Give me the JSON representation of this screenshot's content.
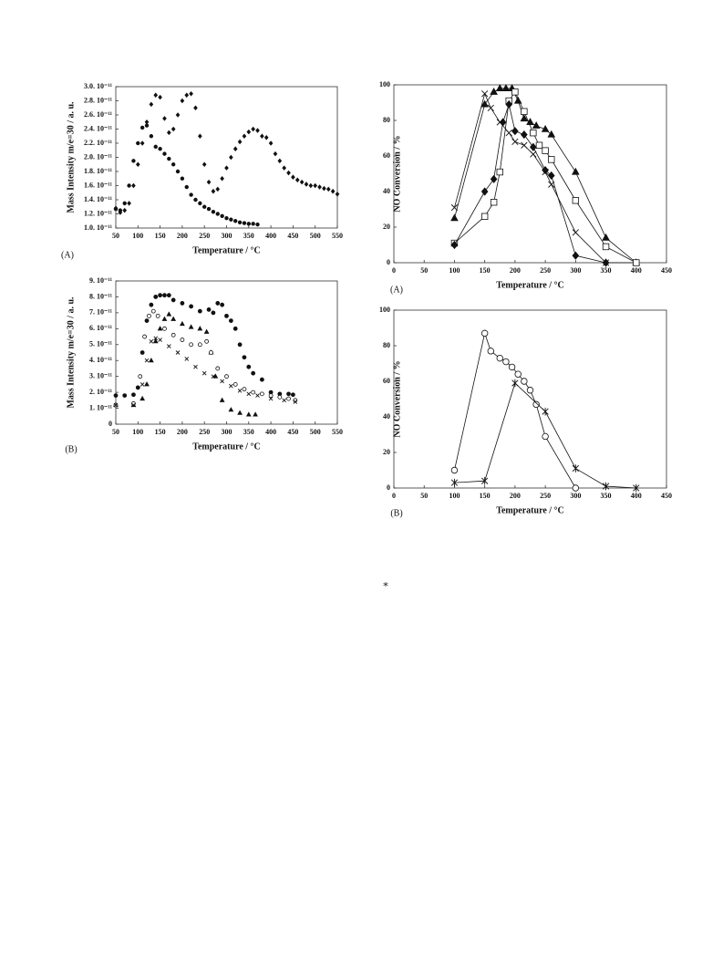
{
  "footnote_mark": "⁎",
  "chart_data": [
    {
      "type": "scatter",
      "panel_label": "(A)",
      "x_label": "Temperature / °C",
      "y_label": "Mass Intensity m/e=30 / a. u.",
      "xlim": [
        50,
        550
      ],
      "xticks": [
        50,
        100,
        150,
        200,
        250,
        300,
        350,
        400,
        450,
        500,
        550
      ],
      "ylim": [
        1e-11,
        3e-11
      ],
      "yticks": [
        {
          "value": 1e-11,
          "label": "1.0. 10⁻¹¹"
        },
        {
          "value": 1.2e-11,
          "label": "1.2. 10⁻¹¹"
        },
        {
          "value": 1.4e-11,
          "label": "1.4. 10⁻¹¹"
        },
        {
          "value": 1.6e-11,
          "label": "1.6. 10⁻¹¹"
        },
        {
          "value": 1.8e-11,
          "label": "1.8. 10⁻¹¹"
        },
        {
          "value": 2e-11,
          "label": "2.0. 10⁻¹¹"
        },
        {
          "value": 2.2e-11,
          "label": "2.2. 10⁻¹¹"
        },
        {
          "value": 2.4e-11,
          "label": "2.4. 10⁻¹¹"
        },
        {
          "value": 2.6e-11,
          "label": "2.6. 10⁻¹¹"
        },
        {
          "value": 2.8e-11,
          "label": "2.8. 10⁻¹¹"
        },
        {
          "value": 3e-11,
          "label": "3.0. 10⁻¹¹"
        }
      ],
      "series": [
        {
          "marker": "circle-filled",
          "color": "#111",
          "x": [
            50,
            60,
            70,
            80,
            90,
            100,
            110,
            120,
            130,
            140,
            150,
            160,
            170,
            180,
            190,
            200,
            210,
            220,
            230,
            240,
            250,
            260,
            270,
            280,
            290,
            300,
            310,
            320,
            330,
            340,
            350,
            360,
            370
          ],
          "values": [
            1.27e-11,
            1.25e-11,
            1.35e-11,
            1.6e-11,
            1.95e-11,
            2.2e-11,
            2.42e-11,
            2.45e-11,
            2.3e-11,
            2.15e-11,
            2.12e-11,
            2.05e-11,
            1.98e-11,
            1.9e-11,
            1.8e-11,
            1.7e-11,
            1.58e-11,
            1.47e-11,
            1.4e-11,
            1.35e-11,
            1.3e-11,
            1.27e-11,
            1.23e-11,
            1.2e-11,
            1.17e-11,
            1.14e-11,
            1.12e-11,
            1.1e-11,
            1.08e-11,
            1.07e-11,
            1.06e-11,
            1.06e-11,
            1.05e-11
          ]
        },
        {
          "marker": "diamond-filled",
          "color": "#111",
          "x": [
            50,
            60,
            70,
            80,
            90,
            100,
            110,
            120,
            130,
            140,
            150,
            160,
            170,
            180,
            190,
            200,
            210,
            220,
            230,
            240,
            250,
            260,
            270,
            280,
            290,
            300,
            310,
            320,
            330,
            340,
            350,
            360,
            370,
            380,
            390,
            400,
            410,
            420,
            430,
            440,
            450,
            460,
            470,
            480,
            490,
            500,
            510,
            520,
            530,
            540,
            550
          ],
          "values": [
            1.28e-11,
            1.22e-11,
            1.25e-11,
            1.35e-11,
            1.6e-11,
            1.9e-11,
            2.2e-11,
            2.5e-11,
            2.75e-11,
            2.88e-11,
            2.85e-11,
            2.55e-11,
            2.35e-11,
            2.4e-11,
            2.6e-11,
            2.8e-11,
            2.88e-11,
            2.9e-11,
            2.7e-11,
            2.3e-11,
            1.9e-11,
            1.65e-11,
            1.52e-11,
            1.55e-11,
            1.7e-11,
            1.85e-11,
            2e-11,
            2.12e-11,
            2.22e-11,
            2.3e-11,
            2.36e-11,
            2.4e-11,
            2.38e-11,
            2.3e-11,
            2.28e-11,
            2.2e-11,
            2.05e-11,
            1.95e-11,
            1.85e-11,
            1.78e-11,
            1.72e-11,
            1.68e-11,
            1.65e-11,
            1.62e-11,
            1.6e-11,
            1.6e-11,
            1.58e-11,
            1.56e-11,
            1.55e-11,
            1.52e-11,
            1.48e-11
          ]
        }
      ]
    },
    {
      "type": "scatter",
      "panel_label": "(B)",
      "x_label": "Temperature / °C",
      "y_label": "Mass Intensity m/e=30 / a. u.",
      "xlim": [
        50,
        550
      ],
      "xticks": [
        50,
        100,
        150,
        200,
        250,
        300,
        350,
        400,
        450,
        500,
        550
      ],
      "ylim": [
        0,
        9e-11
      ],
      "yticks": [
        0,
        {
          "value": 1e-11,
          "label": "1. 10⁻¹¹"
        },
        {
          "value": 2e-11,
          "label": "2. 10⁻¹¹"
        },
        {
          "value": 3e-11,
          "label": "3. 10⁻¹¹"
        },
        {
          "value": 4e-11,
          "label": "4. 10⁻¹¹"
        },
        {
          "value": 5e-11,
          "label": "5. 10⁻¹¹"
        },
        {
          "value": 6e-11,
          "label": "6. 10⁻¹¹"
        },
        {
          "value": 7e-11,
          "label": "7. 10⁻¹¹"
        },
        {
          "value": 8e-11,
          "label": "8. 10⁻¹¹"
        },
        {
          "value": 9e-11,
          "label": "9. 10⁻¹¹"
        }
      ],
      "series": [
        {
          "marker": "circle-filled",
          "color": "#111",
          "x": [
            50,
            70,
            90,
            100,
            110,
            120,
            130,
            140,
            150,
            160,
            170,
            180,
            200,
            220,
            240,
            260,
            270,
            280,
            290,
            300,
            310,
            320,
            330,
            340,
            350,
            360,
            380,
            400,
            420,
            440,
            450
          ],
          "values": [
            1.8e-11,
            1.8e-11,
            1.85e-11,
            2.3e-11,
            4.5e-11,
            6.5e-11,
            7.5e-11,
            8e-11,
            8.1e-11,
            8.1e-11,
            8.1e-11,
            7.8e-11,
            7.6e-11,
            7.4e-11,
            7.1e-11,
            7.2e-11,
            7e-11,
            7.6e-11,
            7.5e-11,
            6.8e-11,
            6.5e-11,
            6e-11,
            5e-11,
            4.2e-11,
            3.6e-11,
            3.2e-11,
            2.8e-11,
            2e-11,
            1.9e-11,
            1.9e-11,
            1.85e-11
          ]
        },
        {
          "marker": "triangle-filled",
          "color": "#111",
          "x": [
            50,
            90,
            110,
            120,
            130,
            140,
            150,
            160,
            170,
            180,
            200,
            220,
            240,
            255,
            265,
            275,
            290,
            310,
            330,
            350,
            365
          ],
          "values": [
            1.2e-11,
            1.2e-11,
            1.6e-11,
            2.5e-11,
            4e-11,
            5.2e-11,
            6e-11,
            6.6e-11,
            6.9e-11,
            6.6e-11,
            6.3e-11,
            6.1e-11,
            6e-11,
            5.8e-11,
            4.5e-11,
            3e-11,
            1.5e-11,
            9e-12,
            7e-12,
            6e-12,
            6e-12
          ]
        },
        {
          "marker": "circle-open",
          "color": "#111",
          "x": [
            50,
            90,
            105,
            115,
            125,
            135,
            145,
            160,
            180,
            200,
            220,
            240,
            255,
            265,
            280,
            300,
            320,
            340,
            360,
            380,
            400,
            420,
            440,
            455
          ],
          "values": [
            1.2e-11,
            1.3e-11,
            3e-11,
            5.5e-11,
            6.8e-11,
            7.1e-11,
            6.8e-11,
            6e-11,
            5.6e-11,
            5.3e-11,
            5e-11,
            5e-11,
            5.2e-11,
            4.5e-11,
            3.5e-11,
            3e-11,
            2.5e-11,
            2.2e-11,
            2e-11,
            1.9e-11,
            1.8e-11,
            1.7e-11,
            1.6e-11,
            1.5e-11
          ]
        },
        {
          "marker": "x",
          "color": "#111",
          "x": [
            50,
            90,
            110,
            120,
            130,
            140,
            150,
            170,
            190,
            210,
            230,
            250,
            270,
            290,
            310,
            330,
            350,
            370,
            400,
            430,
            455
          ],
          "values": [
            1.2e-11,
            1.2e-11,
            2.5e-11,
            4e-11,
            5.2e-11,
            5.4e-11,
            5.3e-11,
            4.9e-11,
            4.5e-11,
            4.1e-11,
            3.6e-11,
            3.2e-11,
            3e-11,
            2.7e-11,
            2.4e-11,
            2.1e-11,
            1.9e-11,
            1.8e-11,
            1.6e-11,
            1.5e-11,
            1.4e-11
          ]
        }
      ]
    },
    {
      "type": "line",
      "panel_label": "(A)",
      "x_label": "Temperature / °C",
      "y_label": "NO Conversion  / %",
      "xlim": [
        0,
        450
      ],
      "xticks": [
        0,
        50,
        100,
        150,
        200,
        250,
        300,
        350,
        400,
        450
      ],
      "ylim": [
        0,
        100
      ],
      "yticks": [
        0,
        20,
        40,
        60,
        80,
        100
      ],
      "series": [
        {
          "marker": "triangle-filled",
          "color": "#111",
          "x": [
            100,
            150,
            165,
            175,
            185,
            195,
            205,
            215,
            225,
            235,
            250,
            260,
            300,
            350,
            400
          ],
          "values": [
            25,
            89,
            96,
            98,
            98,
            98,
            91,
            81,
            79,
            77,
            75,
            72,
            51,
            14,
            0
          ]
        },
        {
          "marker": "x",
          "color": "#111",
          "x": [
            100,
            150,
            160,
            175,
            190,
            200,
            215,
            230,
            250,
            260,
            300,
            350,
            400
          ],
          "values": [
            31,
            95,
            87,
            79,
            73,
            68,
            66,
            61,
            51,
            44,
            17,
            0,
            0
          ]
        },
        {
          "marker": "square-open",
          "color": "#111",
          "x": [
            100,
            150,
            165,
            175,
            190,
            200,
            215,
            230,
            240,
            250,
            260,
            300,
            350,
            400
          ],
          "values": [
            11,
            26,
            34,
            51,
            91,
            96,
            85,
            73,
            66,
            63,
            58,
            35,
            9,
            0
          ]
        },
        {
          "marker": "diamond-filled",
          "color": "#111",
          "x": [
            100,
            150,
            165,
            180,
            190,
            200,
            215,
            230,
            250,
            260,
            300,
            350
          ],
          "values": [
            10,
            40,
            47,
            79,
            89,
            74,
            72,
            65,
            52,
            49,
            4,
            0
          ]
        }
      ]
    },
    {
      "type": "line",
      "panel_label": "(B)",
      "x_label": "Temperature / °C",
      "y_label": "NO Conversion  / %",
      "xlim": [
        0,
        450
      ],
      "xticks": [
        0,
        50,
        100,
        150,
        200,
        250,
        300,
        350,
        400,
        450
      ],
      "ylim": [
        0,
        100
      ],
      "yticks": [
        0,
        20,
        40,
        60,
        80,
        100
      ],
      "series": [
        {
          "marker": "circle-open",
          "color": "#111",
          "x": [
            100,
            150,
            160,
            175,
            185,
            195,
            205,
            215,
            225,
            235,
            250,
            300
          ],
          "values": [
            10,
            87,
            77,
            73,
            71,
            68,
            64,
            60,
            55,
            47,
            29,
            0
          ]
        },
        {
          "marker": "star",
          "color": "#111",
          "x": [
            100,
            150,
            200,
            250,
            300,
            350,
            400
          ],
          "values": [
            3,
            4,
            59,
            43,
            11,
            1,
            0
          ]
        }
      ]
    }
  ]
}
